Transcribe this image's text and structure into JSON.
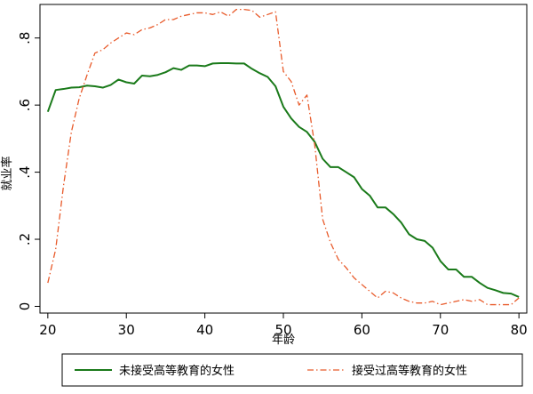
{
  "chart_data": {
    "type": "line",
    "title": "",
    "xlabel": "年龄",
    "ylabel": "就业率",
    "xlim": [
      19,
      81
    ],
    "ylim": [
      -0.02,
      0.9
    ],
    "xticks": [
      {
        "value": 20,
        "label": "20"
      },
      {
        "value": 30,
        "label": "30"
      },
      {
        "value": 40,
        "label": "40"
      },
      {
        "value": 50,
        "label": "50"
      },
      {
        "value": 60,
        "label": "60"
      },
      {
        "value": 70,
        "label": "70"
      },
      {
        "value": 80,
        "label": "80"
      }
    ],
    "yticks": [
      {
        "value": 0,
        "label": "0"
      },
      {
        "value": 0.2,
        "label": ".2"
      },
      {
        "value": 0.4,
        "label": ".4"
      },
      {
        "value": 0.6,
        "label": ".6"
      },
      {
        "value": 0.8,
        "label": ".8"
      }
    ],
    "grid": false,
    "legend_position": "bottom",
    "series": [
      {
        "name": "未接受高等教育的女性",
        "color": "#1a7a1a",
        "style": "solid",
        "x": [
          20,
          21,
          22,
          23,
          24,
          25,
          26,
          27,
          28,
          29,
          30,
          31,
          32,
          33,
          34,
          35,
          36,
          37,
          38,
          39,
          40,
          41,
          42,
          43,
          44,
          45,
          46,
          47,
          48,
          49,
          50,
          51,
          52,
          53,
          54,
          55,
          56,
          57,
          58,
          59,
          60,
          61,
          62,
          63,
          64,
          65,
          66,
          67,
          68,
          69,
          70,
          71,
          72,
          73,
          74,
          75,
          76,
          77,
          78,
          79,
          80
        ],
        "values": [
          0.58,
          0.645,
          0.648,
          0.652,
          0.653,
          0.658,
          0.656,
          0.652,
          0.66,
          0.676,
          0.668,
          0.664,
          0.688,
          0.686,
          0.69,
          0.698,
          0.71,
          0.705,
          0.718,
          0.718,
          0.716,
          0.724,
          0.725,
          0.725,
          0.724,
          0.724,
          0.708,
          0.695,
          0.684,
          0.656,
          0.595,
          0.56,
          0.535,
          0.52,
          0.49,
          0.44,
          0.415,
          0.415,
          0.4,
          0.385,
          0.35,
          0.33,
          0.295,
          0.295,
          0.275,
          0.25,
          0.215,
          0.2,
          0.195,
          0.175,
          0.135,
          0.11,
          0.11,
          0.088,
          0.088,
          0.07,
          0.055,
          0.048,
          0.04,
          0.038,
          0.028
        ]
      },
      {
        "name": "接受过高等教育的女性",
        "color": "#e85a2a",
        "style": "dashdot",
        "x": [
          20,
          21,
          22,
          23,
          24,
          25,
          26,
          27,
          28,
          29,
          30,
          31,
          32,
          33,
          34,
          35,
          36,
          37,
          38,
          39,
          40,
          41,
          42,
          43,
          44,
          45,
          46,
          47,
          48,
          49,
          50,
          51,
          52,
          53,
          54,
          55,
          56,
          57,
          58,
          59,
          60,
          61,
          62,
          63,
          64,
          65,
          66,
          67,
          68,
          69,
          70,
          71,
          72,
          73,
          74,
          75,
          76,
          77,
          78,
          79,
          80
        ],
        "values": [
          0.07,
          0.17,
          0.36,
          0.52,
          0.62,
          0.69,
          0.755,
          0.765,
          0.785,
          0.8,
          0.815,
          0.81,
          0.825,
          0.83,
          0.84,
          0.855,
          0.855,
          0.865,
          0.87,
          0.875,
          0.875,
          0.87,
          0.878,
          0.865,
          0.885,
          0.885,
          0.882,
          0.862,
          0.87,
          0.878,
          0.7,
          0.67,
          0.6,
          0.63,
          0.48,
          0.26,
          0.19,
          0.14,
          0.115,
          0.085,
          0.065,
          0.045,
          0.025,
          0.045,
          0.04,
          0.025,
          0.015,
          0.01,
          0.01,
          0.015,
          0.005,
          0.01,
          0.015,
          0.02,
          0.015,
          0.02,
          0.005,
          0.005,
          0.005,
          0.005,
          0.025
        ]
      }
    ]
  }
}
